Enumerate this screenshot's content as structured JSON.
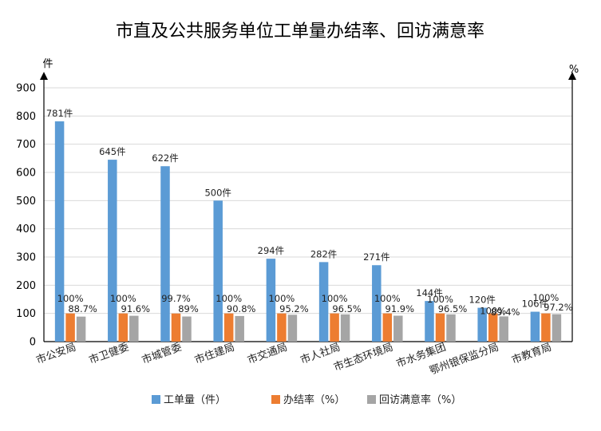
{
  "chart_data": {
    "type": "bar",
    "title": "市直及公共服务单位工单量办结率、回访满意率",
    "left_unit": "件",
    "right_unit": "%",
    "ylim": [
      0,
      900
    ],
    "yticks": [
      "0",
      "100",
      "200",
      "300",
      "400",
      "500",
      "600",
      "700",
      "800",
      "900"
    ],
    "grid": true,
    "legend_position": "bottom",
    "categories": [
      "市公安局",
      "市卫健委",
      "市城管委",
      "市住建局",
      "市交通局",
      "市人社局",
      "市生态环境局",
      "市水务集团",
      "鄂州银保监分局",
      "市教育局"
    ],
    "series": [
      {
        "name": "工单量（件）",
        "color": "#5b9bd5",
        "values": [
          781,
          645,
          622,
          500,
          294,
          282,
          271,
          144,
          120,
          106
        ],
        "labels": [
          "781件",
          "645件",
          "622件",
          "500件",
          "294件",
          "282件",
          "271件",
          "144件",
          "120件",
          "106件"
        ]
      },
      {
        "name": "办结率（%）",
        "color": "#ed7d31",
        "values": [
          100,
          100,
          99.7,
          100,
          100,
          100,
          100,
          100,
          100,
          100
        ],
        "labels": [
          "100%",
          "100%",
          "99.7%",
          "100%",
          "100%",
          "100%",
          "100%",
          "100%",
          "100%",
          "100%"
        ]
      },
      {
        "name": "回访满意率（%）",
        "color": "#a5a5a5",
        "values": [
          88.7,
          91.6,
          89,
          90.8,
          95.2,
          96.5,
          91.9,
          96.5,
          89.4,
          97.2
        ],
        "labels": [
          "88.7%",
          "91.6%",
          "89%",
          "90.8%",
          "95.2%",
          "96.5%",
          "91.9%",
          "96.5%",
          "89.4%",
          "97.2%"
        ]
      }
    ]
  }
}
